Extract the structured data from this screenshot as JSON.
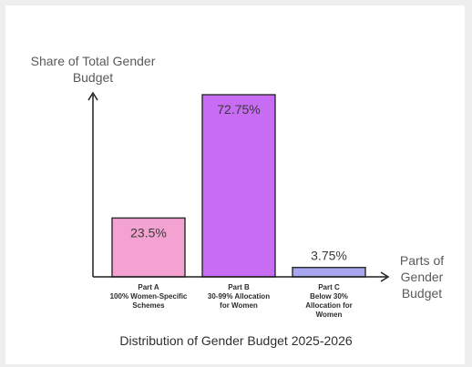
{
  "chart_data": {
    "type": "bar",
    "title": "Distribution of Gender Budget 2025-2026",
    "ylabel_lines": [
      "Share of Total Gender",
      "Budget"
    ],
    "xlabel_lines": [
      "Parts of",
      "Gender",
      "Budget"
    ],
    "categories": [
      {
        "lines": [
          "Part A",
          "100% Women-Specific",
          "Schemes"
        ]
      },
      {
        "lines": [
          "Part B",
          "30-99% Allocation",
          "for Women"
        ]
      },
      {
        "lines": [
          "Part C",
          "Below 30%",
          "Allocation for",
          "Women"
        ]
      }
    ],
    "values": [
      23.5,
      72.75,
      3.75
    ],
    "value_labels": [
      "23.5%",
      "72.75%",
      "3.75%"
    ],
    "ylim": [
      0,
      72.75
    ],
    "colors": [
      "#f4a2d2",
      "#c86cf3",
      "#a8a6ef"
    ],
    "grid": false,
    "legend": false
  }
}
